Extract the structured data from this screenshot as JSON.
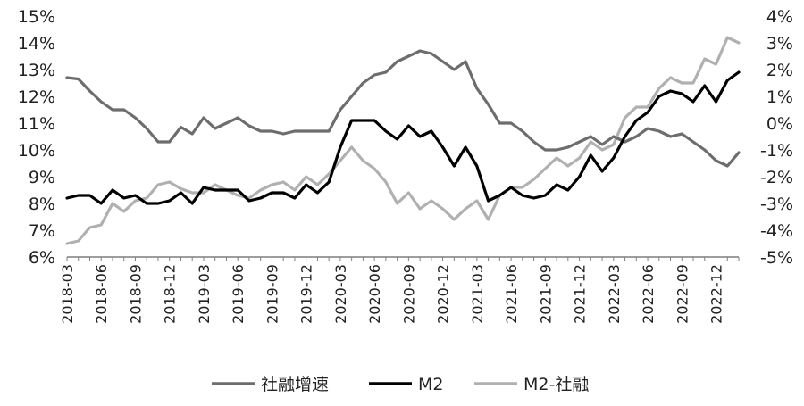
{
  "chart_data": {
    "type": "line",
    "x": [
      "2018-03",
      "2018-04",
      "2018-05",
      "2018-06",
      "2018-07",
      "2018-08",
      "2018-09",
      "2018-10",
      "2018-11",
      "2018-12",
      "2019-01",
      "2019-02",
      "2019-03",
      "2019-04",
      "2019-05",
      "2019-06",
      "2019-07",
      "2019-08",
      "2019-09",
      "2019-10",
      "2019-11",
      "2019-12",
      "2020-01",
      "2020-02",
      "2020-03",
      "2020-04",
      "2020-05",
      "2020-06",
      "2020-07",
      "2020-08",
      "2020-09",
      "2020-10",
      "2020-11",
      "2020-12",
      "2021-01",
      "2021-02",
      "2021-03",
      "2021-04",
      "2021-05",
      "2021-06",
      "2021-07",
      "2021-08",
      "2021-09",
      "2021-10",
      "2021-11",
      "2021-12",
      "2022-01",
      "2022-02",
      "2022-03",
      "2022-04",
      "2022-05",
      "2022-06",
      "2022-07",
      "2022-08",
      "2022-09",
      "2022-10",
      "2022-11",
      "2022-12",
      "2023-01",
      "2023-02"
    ],
    "x_tick_labels": [
      "2018-03",
      "2018-06",
      "2018-09",
      "2018-12",
      "2019-03",
      "2019-06",
      "2019-09",
      "2019-12",
      "2020-03",
      "2020-06",
      "2020-09",
      "2020-12",
      "2021-03",
      "2021-06",
      "2021-09",
      "2021-12",
      "2022-03",
      "2022-06",
      "2022-09",
      "2022-12"
    ],
    "y_left": {
      "min": 6,
      "max": 15,
      "ticks": [
        "6%",
        "7%",
        "8%",
        "9%",
        "10%",
        "11%",
        "12%",
        "13%",
        "14%",
        "15%"
      ]
    },
    "y_right": {
      "min": -5,
      "max": 4,
      "ticks": [
        "-5%",
        "-4%",
        "-3%",
        "-2%",
        "-1%",
        "0%",
        "1%",
        "2%",
        "3%",
        "4%"
      ]
    },
    "series": [
      {
        "name": "社融增速",
        "axis": "left",
        "color": "#6d6d6d",
        "values": [
          12.7,
          12.65,
          12.2,
          11.8,
          11.5,
          11.5,
          11.2,
          10.8,
          10.3,
          10.3,
          10.85,
          10.6,
          11.2,
          10.8,
          11.0,
          11.2,
          10.9,
          10.7,
          10.7,
          10.6,
          10.7,
          10.7,
          10.7,
          10.7,
          11.5,
          12.0,
          12.5,
          12.8,
          12.9,
          13.3,
          13.5,
          13.7,
          13.6,
          13.3,
          13.0,
          13.3,
          12.3,
          11.7,
          11.0,
          11.0,
          10.7,
          10.3,
          10.0,
          10.0,
          10.1,
          10.3,
          10.5,
          10.2,
          10.5,
          10.3,
          10.5,
          10.8,
          10.7,
          10.5,
          10.6,
          10.3,
          10.0,
          9.6,
          9.4,
          9.9
        ]
      },
      {
        "name": "M2",
        "axis": "left",
        "color": "#000000",
        "values": [
          8.2,
          8.3,
          8.3,
          8.0,
          8.5,
          8.2,
          8.3,
          8.0,
          8.0,
          8.1,
          8.4,
          8.0,
          8.6,
          8.5,
          8.5,
          8.5,
          8.1,
          8.2,
          8.4,
          8.4,
          8.2,
          8.7,
          8.4,
          8.8,
          10.1,
          11.1,
          11.1,
          11.1,
          10.7,
          10.4,
          10.9,
          10.5,
          10.7,
          10.1,
          9.4,
          10.1,
          9.4,
          8.1,
          8.3,
          8.6,
          8.3,
          8.2,
          8.3,
          8.7,
          8.5,
          9.0,
          9.8,
          9.2,
          9.7,
          10.5,
          11.1,
          11.4,
          12.0,
          12.2,
          12.1,
          11.8,
          12.4,
          11.8,
          12.6,
          12.9
        ]
      },
      {
        "name": "M2-社融",
        "axis": "right",
        "color": "#b0b0b0",
        "values": [
          -4.5,
          -4.4,
          -3.9,
          -3.8,
          -3.0,
          -3.3,
          -2.9,
          -2.8,
          -2.3,
          -2.2,
          -2.45,
          -2.6,
          -2.6,
          -2.3,
          -2.5,
          -2.7,
          -2.8,
          -2.5,
          -2.3,
          -2.2,
          -2.5,
          -2.0,
          -2.3,
          -1.9,
          -1.4,
          -0.9,
          -1.4,
          -1.7,
          -2.2,
          -3.0,
          -2.6,
          -3.2,
          -2.9,
          -3.2,
          -3.6,
          -3.2,
          -2.9,
          -3.6,
          -2.7,
          -2.4,
          -2.4,
          -2.1,
          -1.7,
          -1.3,
          -1.6,
          -1.3,
          -0.7,
          -1.0,
          -0.8,
          0.2,
          0.6,
          0.6,
          1.3,
          1.7,
          1.5,
          1.5,
          2.4,
          2.2,
          3.2,
          3.0
        ]
      }
    ],
    "legend_position": "bottom",
    "grid": false
  }
}
